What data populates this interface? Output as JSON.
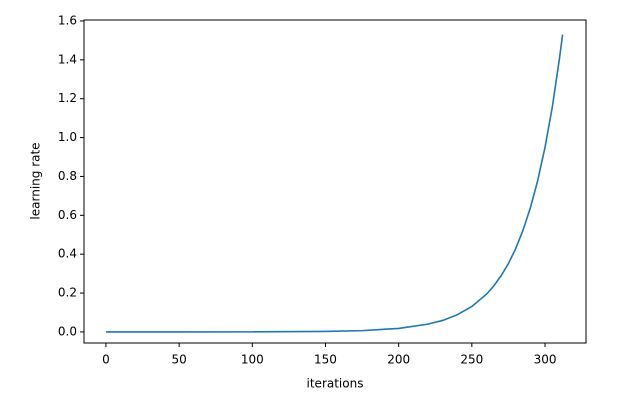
{
  "chart_data": {
    "type": "line",
    "x_label": "iterations",
    "y_label": "learning rate",
    "x": [
      0,
      50,
      100,
      150,
      175,
      200,
      220,
      230,
      240,
      250,
      260,
      265,
      270,
      275,
      280,
      285,
      290,
      295,
      300,
      305,
      310,
      312
    ],
    "series": [
      {
        "color": "#1f77b4",
        "values": [
          0.0,
          5e-05,
          0.0003,
          0.0025,
          0.0067,
          0.018,
          0.04,
          0.059,
          0.088,
          0.131,
          0.194,
          0.237,
          0.289,
          0.352,
          0.429,
          0.524,
          0.639,
          0.779,
          0.95,
          1.158,
          1.414,
          1.53
        ]
      }
    ],
    "xlim": [
      -15,
      328
    ],
    "xticks": [
      0,
      50,
      100,
      150,
      200,
      250,
      300
    ],
    "ylim": [
      -0.057,
      1.605
    ],
    "yticks": [
      {
        "value": 0,
        "label": "0.0"
      },
      0.2,
      0.4,
      0.6,
      0.8,
      {
        "value": 1,
        "label": "1.0"
      },
      1.2,
      1.4,
      1.6
    ],
    "grid": false
  }
}
